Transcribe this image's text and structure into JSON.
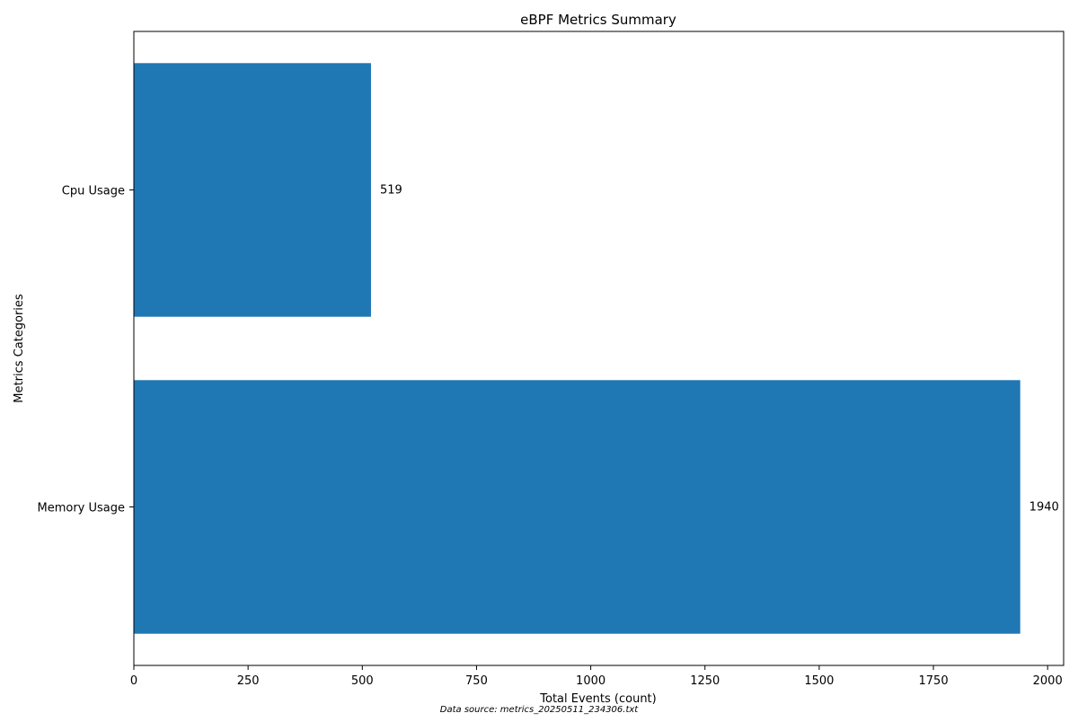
{
  "chart_data": {
    "type": "bar",
    "orientation": "horizontal",
    "title": "eBPF Metrics Summary",
    "xlabel": "Total Events (count)",
    "ylabel": "Metrics Categories",
    "categories": [
      "Cpu Usage",
      "Memory Usage"
    ],
    "values": [
      519,
      1940
    ],
    "data_labels": [
      "519",
      "1940"
    ],
    "xlim": [
      0,
      2035
    ],
    "xticks": [
      0,
      250,
      500,
      750,
      1000,
      1250,
      1500,
      1750,
      2000
    ],
    "grid": false,
    "legend": "none",
    "bar_color": "#1f77b4"
  },
  "footnote": "Data source: metrics_20250511_234306.txt"
}
